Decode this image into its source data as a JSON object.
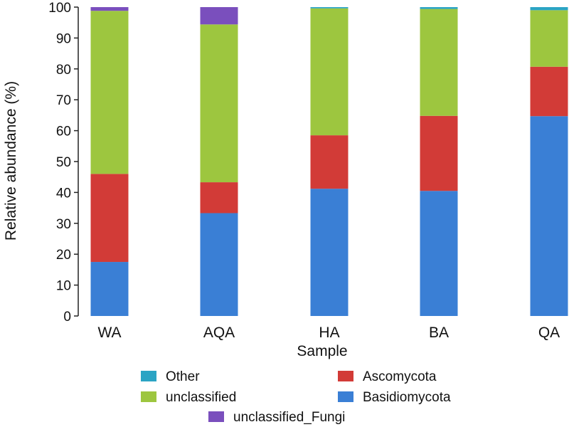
{
  "chart_data": {
    "type": "bar",
    "stacked": true,
    "title": "",
    "xlabel": "Sample",
    "ylabel": "Relative abundance (%)",
    "ylim": [
      0,
      100
    ],
    "yticks": [
      0,
      10,
      20,
      30,
      40,
      50,
      60,
      70,
      80,
      90,
      100
    ],
    "grid": false,
    "legend_position": "bottom",
    "categories": [
      "WA",
      "AQA",
      "HA",
      "BA",
      "QA"
    ],
    "series": [
      {
        "name": "Basidiomycota",
        "color": "#3a7fd5",
        "values": [
          17.5,
          33.3,
          41.2,
          40.5,
          64.7
        ]
      },
      {
        "name": "Ascomycota",
        "color": "#d23b37",
        "values": [
          28.5,
          10.0,
          17.3,
          24.3,
          16.0
        ]
      },
      {
        "name": "unclassified",
        "color": "#9dc63f",
        "values": [
          52.8,
          51.1,
          41.1,
          34.6,
          18.3
        ]
      },
      {
        "name": "unclassified_Fungi",
        "color": "#7a4fbd",
        "values": [
          1.2,
          5.6,
          0.0,
          0.0,
          0.0
        ]
      },
      {
        "name": "Other",
        "color": "#2ba4c4",
        "values": [
          0.0,
          0.0,
          0.4,
          0.6,
          1.0
        ]
      }
    ],
    "legend": [
      {
        "name": "Other",
        "color": "#2ba4c4"
      },
      {
        "name": "Ascomycota",
        "color": "#d23b37"
      },
      {
        "name": "unclassified",
        "color": "#9dc63f"
      },
      {
        "name": "Basidiomycota",
        "color": "#3a7fd5"
      },
      {
        "name": "unclassified_Fungi",
        "color": "#7a4fbd"
      }
    ]
  }
}
